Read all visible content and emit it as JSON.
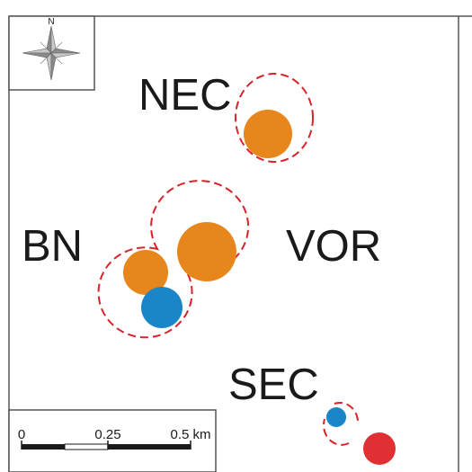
{
  "compass": {
    "north_label": "N",
    "icon": "compass-rose-icon"
  },
  "sites": [
    {
      "id": "NEC",
      "label": "NEC"
    },
    {
      "id": "BN",
      "label": "BN"
    },
    {
      "id": "VOR",
      "label": "VOR"
    },
    {
      "id": "SEC",
      "label": "SEC"
    }
  ],
  "scale_bar": {
    "labels": [
      "0",
      "0.25",
      "0.5 km"
    ],
    "ticks_km": [
      0,
      0.25,
      0.5
    ]
  },
  "colors": {
    "orange": "#E8861E",
    "blue": "#1A86C8",
    "red": "#E03033",
    "dashed_boundary": "#D8232A",
    "frame": "#555555",
    "compass_fill": "#9A9A9A"
  }
}
